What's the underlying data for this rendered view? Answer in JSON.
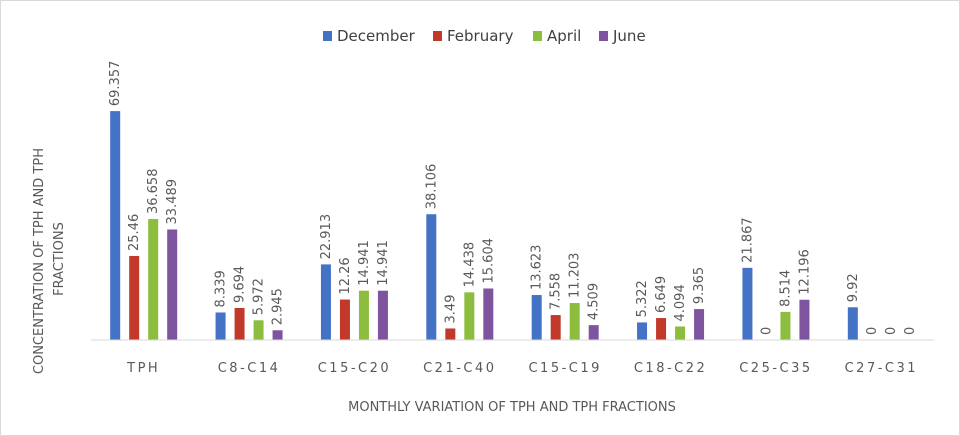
{
  "chart_data": {
    "type": "bar",
    "title": "",
    "xlabel": "MONTHLY VARIATION OF TPH AND TPH FRACTIONS",
    "ylabel_lines": [
      "CONCENTRATION OF TPH AND TPH",
      "FRACTIONS"
    ],
    "ylim": [
      0,
      75
    ],
    "grid": false,
    "legend_position": "top",
    "categories": [
      "TPH",
      "C8-C14",
      "C15-C20",
      "C21-C40",
      "C15-C19",
      "C18-C22",
      "C25-C35",
      "C27-C31"
    ],
    "series": [
      {
        "name": "December",
        "color": "#4472c4",
        "values": [
          69.357,
          8.339,
          22.913,
          38.106,
          13.623,
          5.322,
          21.867,
          9.92
        ]
      },
      {
        "name": "February",
        "color": "#c0392b",
        "values": [
          25.46,
          9.694,
          12.26,
          3.49,
          7.558,
          6.649,
          0,
          0
        ]
      },
      {
        "name": "April",
        "color": "#8cbd3f",
        "values": [
          36.658,
          5.972,
          14.941,
          14.438,
          11.203,
          4.094,
          8.514,
          0
        ]
      },
      {
        "name": "June",
        "color": "#7e549f",
        "values": [
          33.489,
          2.945,
          14.941,
          15.604,
          4.509,
          9.365,
          12.196,
          0
        ]
      }
    ]
  }
}
